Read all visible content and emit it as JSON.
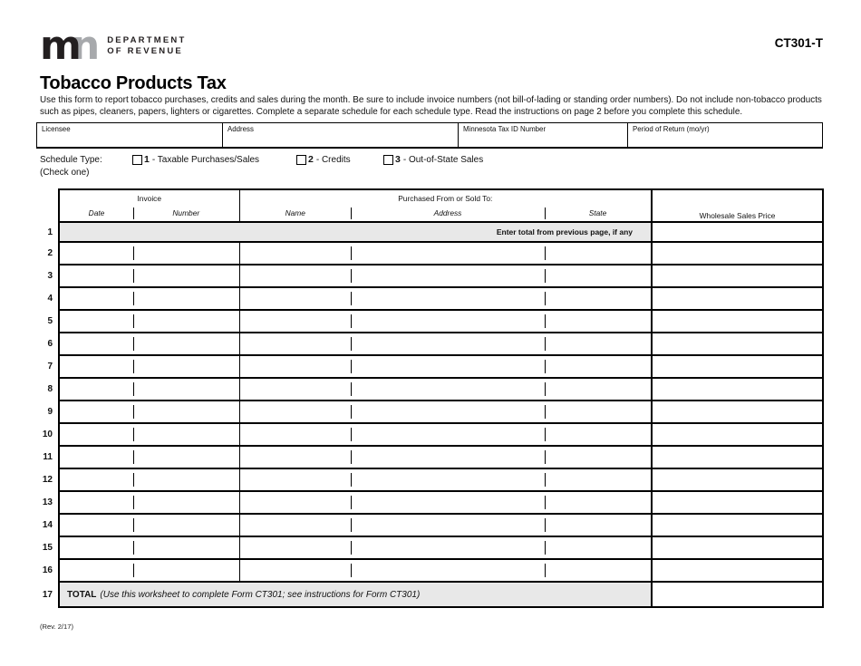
{
  "header": {
    "logo": {
      "word_m": "m",
      "word_n": "n",
      "dept_line1": "DEPARTMENT",
      "dept_line2": "OF REVENUE"
    },
    "form_number": "CT301-T"
  },
  "title": "Tobacco Products Tax",
  "instructions": "Use this form to report tobacco purchases, credits and sales during the month.  Be sure to include invoice numbers (not bill-of-lading or standing order numbers). Do not include non-tobacco products such as pipes, cleaners, papers, lighters or cigarettes.  Complete a separate schedule for each schedule type.  Read the instructions on page 2 before you complete this schedule.",
  "fields": {
    "licensee": "Licensee",
    "address": "Address",
    "tax_id": "Minnesota Tax ID Number",
    "period": "Period of Return (mo/yr)"
  },
  "schedule": {
    "label": "Schedule Type:",
    "check_one": "(Check one)",
    "options": [
      {
        "number": "1",
        "label": "- Taxable Purchases/Sales"
      },
      {
        "number": "2",
        "label": "- Credits"
      },
      {
        "number": "3",
        "label": "- Out-of-State Sales"
      }
    ]
  },
  "table": {
    "group_invoice": "Invoice",
    "group_purchased": "Purchased From or Sold To:",
    "price_header": "Wholesale Sales Price",
    "column_labels": {
      "date": "Date",
      "number": "Number",
      "name": "Name",
      "address": "Address",
      "state": "State"
    },
    "row1_note": "Enter total from previous page, if any",
    "total_label": "TOTAL",
    "total_note": "(Use this worksheet to complete Form CT301; see instructions for Form CT301)",
    "row_numbers": [
      "1",
      "2",
      "3",
      "4",
      "5",
      "6",
      "7",
      "8",
      "9",
      "10",
      "11",
      "12",
      "13",
      "14",
      "15",
      "16",
      "17"
    ]
  },
  "footer": {
    "revision": "(Rev. 2/17)"
  },
  "colors": {
    "line": "#000000",
    "gray_fill": "#e8e8e8",
    "logo_black": "#231f20",
    "logo_gray": "#a7a9ac"
  }
}
